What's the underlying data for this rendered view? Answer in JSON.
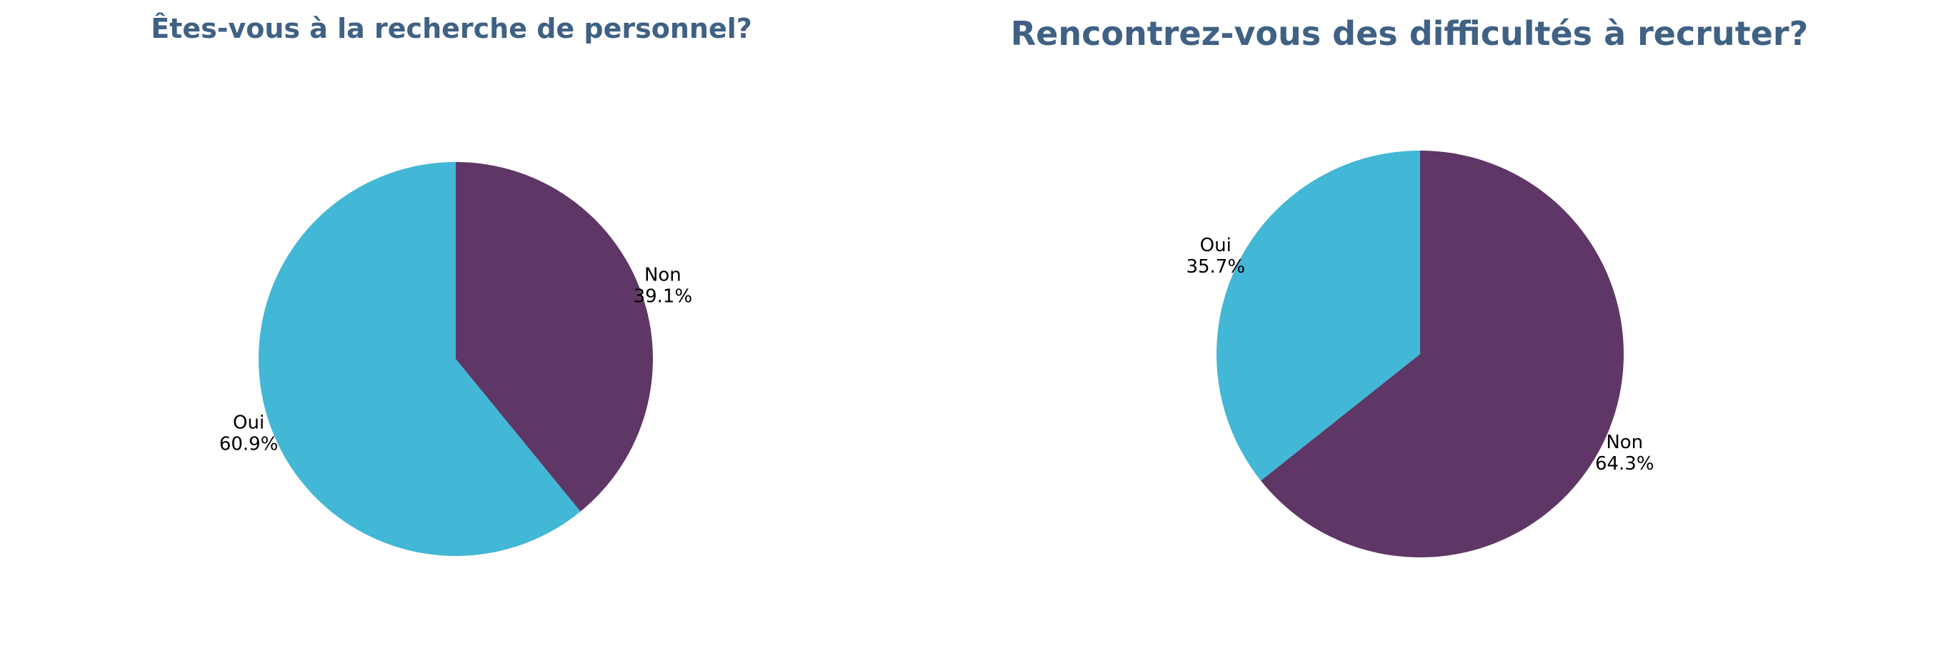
{
  "chart_data": [
    {
      "type": "pie",
      "title": "Êtes-vous à la recherche de personnel?",
      "slices": [
        {
          "label": "Non",
          "value": 39.1,
          "display": "39.1%",
          "color": "#5e3766"
        },
        {
          "label": "Oui",
          "value": 60.9,
          "display": "60.9%",
          "color": "#42b7d6"
        }
      ],
      "start_angle_deg": 0,
      "direction": "clockwise",
      "legend": "none"
    },
    {
      "type": "pie",
      "title": "Rencontrez-vous des difficultés à recruter?",
      "slices": [
        {
          "label": "Non",
          "value": 64.3,
          "display": "64.3%",
          "color": "#5e3766"
        },
        {
          "label": "Oui",
          "value": 35.7,
          "display": "35.7%",
          "color": "#42b7d6"
        }
      ],
      "start_angle_deg": 0,
      "direction": "clockwise",
      "legend": "none"
    }
  ]
}
